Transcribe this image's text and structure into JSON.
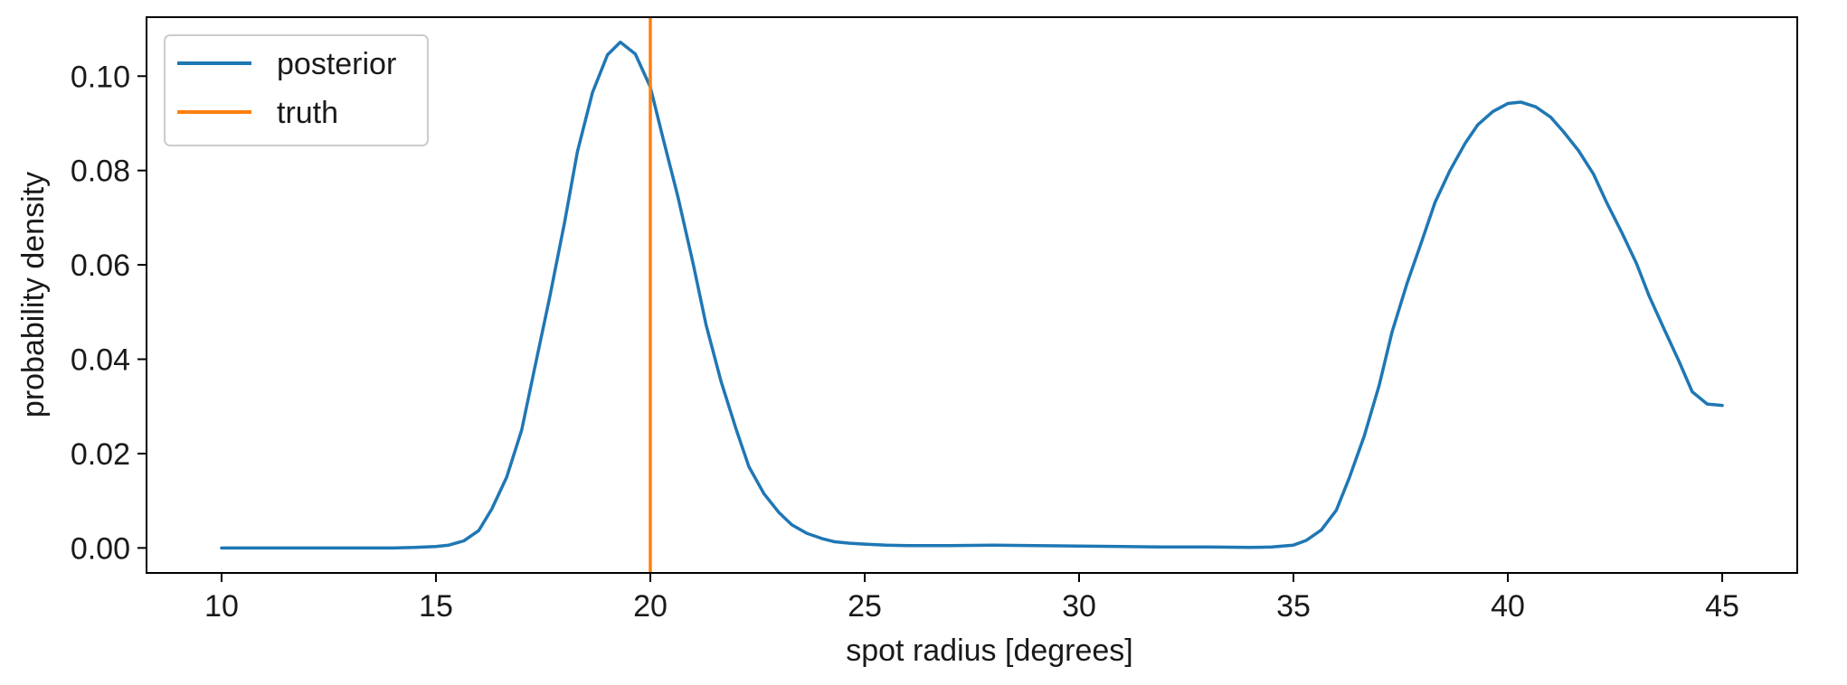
{
  "chart_data": {
    "type": "line",
    "xlabel": "spot radius [degrees]",
    "ylabel": "probability density",
    "xlim": [
      8.25,
      46.75
    ],
    "ylim": [
      -0.0053,
      0.1125
    ],
    "xticks": [
      10,
      15,
      20,
      25,
      30,
      35,
      40,
      45
    ],
    "xtick_labels": [
      "10",
      "15",
      "20",
      "25",
      "30",
      "35",
      "40",
      "45"
    ],
    "yticks": [
      0.0,
      0.02,
      0.04,
      0.06,
      0.08,
      0.1
    ],
    "ytick_labels": [
      "0.00",
      "0.02",
      "0.04",
      "0.06",
      "0.08",
      "0.10"
    ],
    "grid": false,
    "legend_position": "top-left",
    "series": [
      {
        "name": "posterior",
        "color": "#1f77b4",
        "x": [
          10,
          11,
          12,
          13,
          14,
          14.5,
          15,
          15.3,
          15.65,
          16,
          16.3,
          16.65,
          17,
          17.3,
          17.65,
          18,
          18.3,
          18.65,
          19,
          19.3,
          19.65,
          20,
          20.3,
          20.65,
          21,
          21.3,
          21.65,
          22,
          22.3,
          22.65,
          23,
          23.3,
          23.65,
          24,
          24.3,
          24.65,
          25,
          25.5,
          26,
          27,
          28,
          29,
          30,
          31,
          32,
          33,
          34,
          34.5,
          35,
          35.3,
          35.65,
          36,
          36.3,
          36.65,
          37,
          37.3,
          37.65,
          38,
          38.3,
          38.65,
          39,
          39.3,
          39.65,
          40,
          40.3,
          40.65,
          41,
          41.3,
          41.65,
          42,
          42.3,
          42.65,
          43,
          43.3,
          43.65,
          44,
          44.3,
          44.65,
          45
        ],
        "y": [
          0.0,
          0.0,
          0.0,
          0.0,
          0.0,
          0.0001,
          0.0003,
          0.0006,
          0.0015,
          0.0037,
          0.0082,
          0.015,
          0.025,
          0.038,
          0.053,
          0.069,
          0.084,
          0.0965,
          0.1045,
          0.1072,
          0.1047,
          0.0977,
          0.0867,
          0.0742,
          0.0602,
          0.0473,
          0.0353,
          0.0252,
          0.0172,
          0.0115,
          0.0075,
          0.0049,
          0.0031,
          0.002,
          0.0013,
          0.001,
          0.0008,
          0.0006,
          0.0005,
          0.0005,
          0.0006,
          0.0005,
          0.0004,
          0.0003,
          0.0002,
          0.0002,
          0.0001,
          0.0002,
          0.0006,
          0.0016,
          0.0038,
          0.008,
          0.0148,
          0.0237,
          0.0345,
          0.0458,
          0.0561,
          0.0652,
          0.0732,
          0.08,
          0.0857,
          0.0897,
          0.0925,
          0.0942,
          0.0945,
          0.0935,
          0.0913,
          0.0882,
          0.0842,
          0.0792,
          0.0733,
          0.067,
          0.0603,
          0.0533,
          0.0463,
          0.0394,
          0.0331,
          0.0305,
          0.0302
        ]
      },
      {
        "name": "truth",
        "color": "#ff7f0e",
        "vline_x": 20
      }
    ]
  }
}
